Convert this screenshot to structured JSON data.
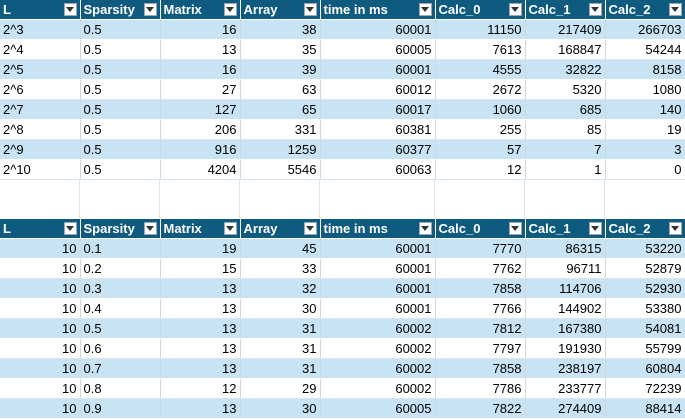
{
  "table1": {
    "headers": [
      "L",
      "Sparsity",
      "Matrix",
      "Array",
      "time in ms",
      "Calc_0",
      "Calc_1",
      "Calc_2"
    ],
    "rows": [
      [
        "2^3",
        "0.5",
        "16",
        "38",
        "60001",
        "11150",
        "217409",
        "266703"
      ],
      [
        "2^4",
        "0.5",
        "13",
        "35",
        "60005",
        "7613",
        "168847",
        "54244"
      ],
      [
        "2^5",
        "0.5",
        "16",
        "39",
        "60001",
        "4555",
        "32822",
        "8158"
      ],
      [
        "2^6",
        "0.5",
        "27",
        "63",
        "60012",
        "2672",
        "5320",
        "1080"
      ],
      [
        "2^7",
        "0.5",
        "127",
        "65",
        "60017",
        "1060",
        "685",
        "140"
      ],
      [
        "2^8",
        "0.5",
        "206",
        "331",
        "60381",
        "255",
        "85",
        "19"
      ],
      [
        "2^9",
        "0.5",
        "916",
        "1259",
        "60377",
        "57",
        "7",
        "3"
      ],
      [
        "2^10",
        "0.5",
        "4204",
        "5546",
        "60063",
        "12",
        "1",
        "0"
      ]
    ]
  },
  "table2": {
    "headers": [
      "L",
      "Sparsity",
      "Matrix",
      "Array",
      "time in ms",
      "Calc_0",
      "Calc_1",
      "Calc_2"
    ],
    "rows": [
      [
        "10",
        "0.1",
        "19",
        "45",
        "60001",
        "7770",
        "86315",
        "53220"
      ],
      [
        "10",
        "0.2",
        "15",
        "33",
        "60001",
        "7762",
        "96711",
        "52879"
      ],
      [
        "10",
        "0.3",
        "13",
        "32",
        "60001",
        "7858",
        "114706",
        "52930"
      ],
      [
        "10",
        "0.4",
        "13",
        "30",
        "60001",
        "7766",
        "144902",
        "53380"
      ],
      [
        "10",
        "0.5",
        "13",
        "31",
        "60002",
        "7812",
        "167380",
        "54081"
      ],
      [
        "10",
        "0.6",
        "13",
        "31",
        "60002",
        "7797",
        "191930",
        "55799"
      ],
      [
        "10",
        "0.7",
        "13",
        "31",
        "60002",
        "7858",
        "238197",
        "60804"
      ],
      [
        "10",
        "0.8",
        "12",
        "29",
        "60002",
        "7786",
        "233777",
        "72239"
      ],
      [
        "10",
        "0.9",
        "13",
        "30",
        "60005",
        "7822",
        "274409",
        "88414"
      ]
    ]
  },
  "colors": {
    "header_bg": "#0f5a7f",
    "band_bg": "#c8e3f3",
    "plain_bg": "#ffffff"
  },
  "icons": {
    "filter": "chevron-down-icon"
  }
}
